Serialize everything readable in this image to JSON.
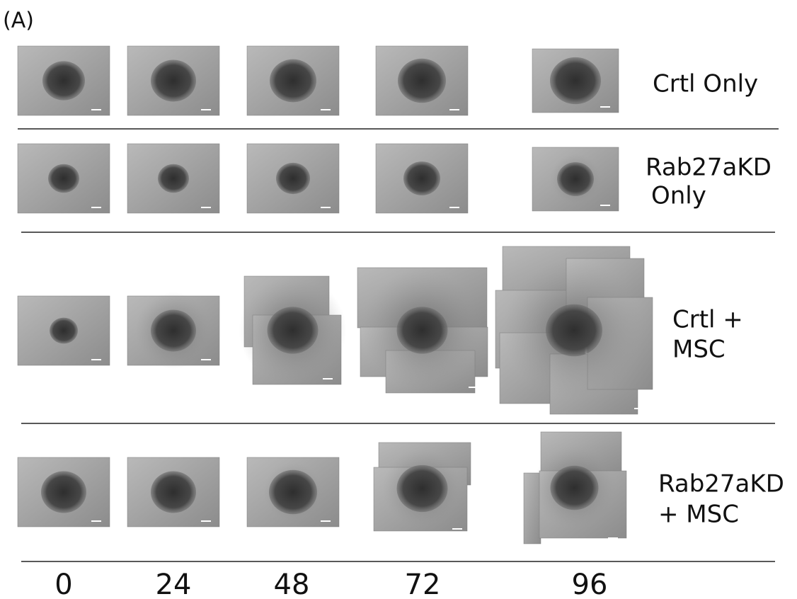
{
  "panel_label": "(A)",
  "rows": [
    {
      "label": [
        "Crtl Only"
      ]
    },
    {
      "label": [
        "Rab27aKD",
        "Only"
      ]
    },
    {
      "label": [
        "Crtl +",
        "MSC"
      ]
    },
    {
      "label": [
        "Rab27aKD",
        "+ MSC"
      ]
    }
  ],
  "time_labels": [
    "0",
    "24",
    "48",
    "72",
    "96"
  ]
}
